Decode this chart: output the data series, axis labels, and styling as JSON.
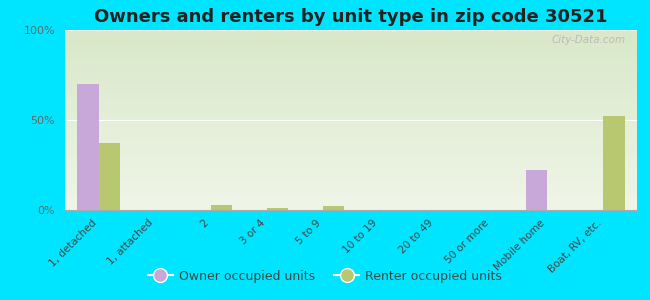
{
  "title": "Owners and renters by unit type in zip code 30521",
  "categories": [
    "1, detached",
    "1, attached",
    "2",
    "3 or 4",
    "5 to 9",
    "10 to 19",
    "20 to 49",
    "50 or more",
    "Mobile home",
    "Boat, RV, etc."
  ],
  "owner_values": [
    70,
    0,
    0,
    0,
    0,
    0,
    0,
    0,
    22,
    0
  ],
  "renter_values": [
    37,
    0,
    3,
    1,
    2,
    0,
    0,
    0,
    0,
    52
  ],
  "owner_color": "#c8a8d8",
  "renter_color": "#b8c870",
  "background_color": "#00e5ff",
  "plot_bg_color_top": "#d8e8c8",
  "plot_bg_color_bottom": "#f0f5e8",
  "title_fontsize": 13,
  "ylabel_ticks": [
    "0%",
    "50%",
    "100%"
  ],
  "yticks": [
    0,
    50,
    100
  ],
  "ylim": [
    0,
    100
  ],
  "bar_width": 0.38,
  "watermark": "City-Data.com"
}
